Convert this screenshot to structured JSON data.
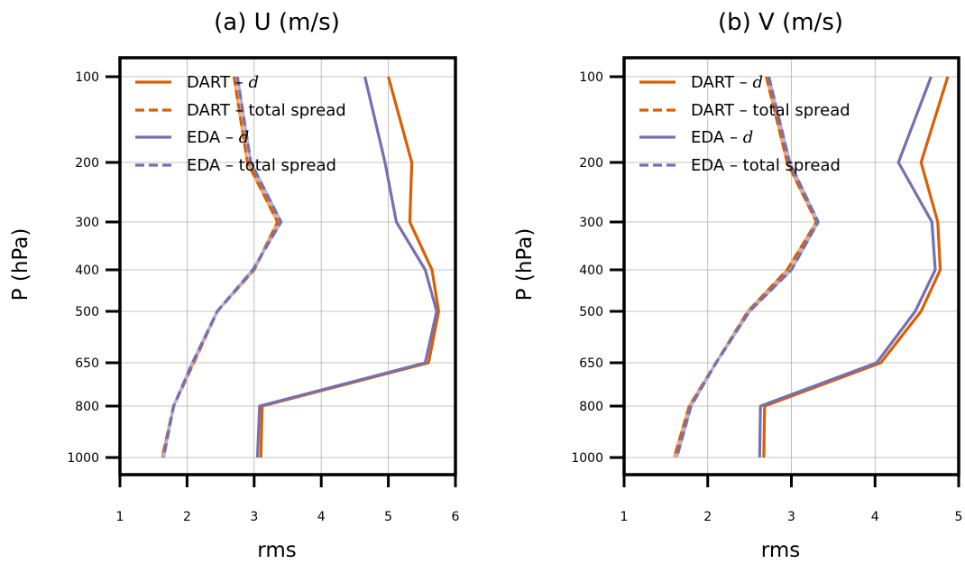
{
  "colors": {
    "dart": "#d95f02",
    "eda": "#7570b3",
    "dart_light": "#f1a86a",
    "eda_light": "#b4b0d8"
  },
  "chart_data": [
    {
      "type": "line",
      "title": "(a) U (m/s)",
      "xlabel": "rms",
      "ylabel": "P (hPa)",
      "xlim": [
        1,
        6
      ],
      "xticks": [
        "1",
        "2",
        "3",
        "4",
        "5",
        "6"
      ],
      "y": [
        100,
        200,
        300,
        400,
        500,
        650,
        800,
        1000
      ],
      "yticks": [
        "100",
        "200",
        "300",
        "400",
        "500",
        "650",
        "800",
        "1000"
      ],
      "grid": true,
      "legend": "top-left",
      "series": [
        {
          "legend_prefix": "DART – ",
          "legend_suffix": "d",
          "style": "solid",
          "color": "dart",
          "values": [
            5.0,
            5.35,
            5.32,
            5.65,
            5.75,
            5.6,
            3.12,
            3.1
          ]
        },
        {
          "legend_prefix": "DART – total spread",
          "legend_suffix": "",
          "style": "dashed",
          "color": "dart",
          "values": [
            2.7,
            2.9,
            3.35,
            3.0,
            2.45,
            2.1,
            1.8,
            1.63
          ]
        },
        {
          "legend_prefix": "EDA – ",
          "legend_suffix": "d",
          "style": "solid",
          "color": "eda",
          "values": [
            4.65,
            4.95,
            5.12,
            5.55,
            5.72,
            5.55,
            3.08,
            3.05
          ]
        },
        {
          "legend_prefix": "EDA – total spread",
          "legend_suffix": "",
          "style": "dashed",
          "color": "eda",
          "values": [
            2.75,
            2.95,
            3.4,
            2.98,
            2.45,
            2.08,
            1.8,
            1.65
          ]
        }
      ]
    },
    {
      "type": "line",
      "title": "(b) V (m/s)",
      "xlabel": "rms",
      "ylabel": "P (hPa)",
      "xlim": [
        1,
        5
      ],
      "xticks": [
        "1",
        "2",
        "3",
        "4",
        "5"
      ],
      "y": [
        100,
        200,
        300,
        400,
        500,
        650,
        800,
        1000
      ],
      "yticks": [
        "100",
        "200",
        "300",
        "400",
        "500",
        "650",
        "800",
        "1000"
      ],
      "grid": true,
      "legend": "top-left",
      "series": [
        {
          "legend_prefix": "DART – ",
          "legend_suffix": "d",
          "style": "solid",
          "color": "dart",
          "values": [
            4.87,
            4.55,
            4.75,
            4.78,
            4.55,
            4.07,
            2.68,
            2.67
          ]
        },
        {
          "legend_prefix": "DART – total spread",
          "legend_suffix": "",
          "style": "dashed",
          "color": "dart",
          "values": [
            2.7,
            2.95,
            3.3,
            2.95,
            2.48,
            2.1,
            1.78,
            1.6
          ]
        },
        {
          "legend_prefix": "EDA – ",
          "legend_suffix": "d",
          "style": "solid",
          "color": "eda",
          "values": [
            4.67,
            4.28,
            4.68,
            4.72,
            4.48,
            4.02,
            2.63,
            2.62
          ]
        },
        {
          "legend_prefix": "EDA – total spread",
          "legend_suffix": "",
          "style": "dashed",
          "color": "eda",
          "values": [
            2.73,
            2.98,
            3.32,
            3.0,
            2.5,
            2.1,
            1.8,
            1.63
          ]
        }
      ]
    }
  ]
}
